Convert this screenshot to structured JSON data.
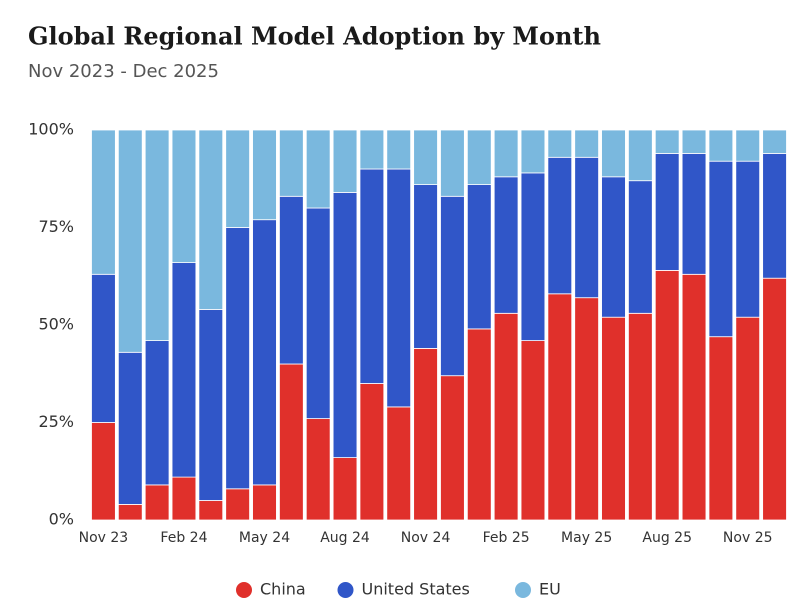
{
  "chart_data": {
    "type": "stacked-bar",
    "title": "Global Regional Model Adoption by Month",
    "subtitle": "Nov 2023 - Dec 2025",
    "categories": [
      "Nov 23",
      null,
      null,
      "Feb 24",
      null,
      null,
      "May 24",
      null,
      null,
      "Aug 24",
      null,
      null,
      "Nov 24",
      null,
      null,
      "Feb 25",
      null,
      null,
      "May 25",
      null,
      null,
      "Aug 25",
      null,
      null,
      "Nov 25",
      null
    ],
    "series": [
      {
        "name": "China",
        "color": "#e0302b",
        "values": [
          25,
          4,
          9,
          11,
          5,
          8,
          9,
          40,
          26,
          16,
          35,
          29,
          44,
          37,
          49,
          53,
          46,
          58,
          57,
          52,
          53,
          64,
          63,
          47,
          52,
          62
        ]
      },
      {
        "name": "United States",
        "color": "#3056c8",
        "values": [
          38,
          39,
          37,
          55,
          49,
          67,
          68,
          43,
          54,
          68,
          55,
          61,
          42,
          46,
          37,
          35,
          43,
          35,
          36,
          36,
          34,
          30,
          31,
          45,
          40,
          32
        ]
      },
      {
        "name": "EU",
        "color": "#7ab8de",
        "values": [
          37,
          57,
          54,
          34,
          46,
          25,
          23,
          17,
          20,
          16,
          10,
          10,
          14,
          17,
          14,
          12,
          11,
          7,
          7,
          12,
          13,
          6,
          6,
          8,
          8,
          6
        ]
      }
    ],
    "ylim": [
      0,
      100
    ],
    "yticks": [
      {
        "value": 0,
        "label": "0%"
      },
      {
        "value": 25,
        "label": "25%"
      },
      {
        "value": 50,
        "label": "50%"
      },
      {
        "value": 75,
        "label": "75%"
      },
      {
        "value": 100,
        "label": "100%"
      }
    ],
    "legend": "bottom"
  }
}
